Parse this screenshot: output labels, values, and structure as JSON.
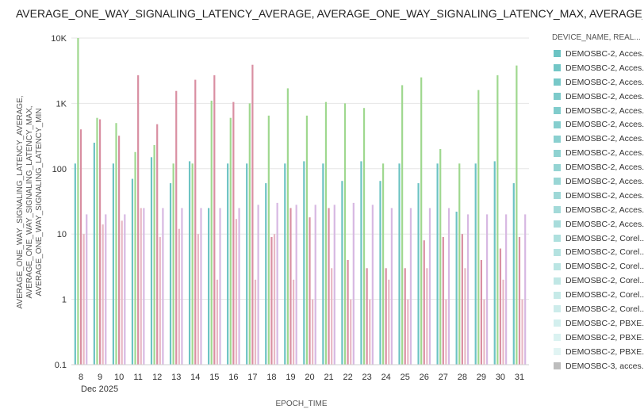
{
  "chart_data": {
    "type": "bar",
    "title": "AVERAGE_ONE_WAY_SIGNALING_LATENCY_AVERAGE, AVERAGE_ONE_WAY_SIGNALING_LATENCY_MAX, AVERAGE_ONE_WAY_SI",
    "xlabel": "EPOCH_TIME",
    "ylabel_lines": [
      "AVERAGE_ONE_WAY_SIGNALING_LATENCY_AVERAGE,",
      "AVERAGE_ONE_WAY_SIGNALING_LATENCY_MAX,",
      "AVERAGE_ONE_WAY_SIGNALING_LATENCY_MIN"
    ],
    "y_scale": "log",
    "ylim": [
      0.1,
      10000
    ],
    "y_ticks": [
      "0.1",
      "1",
      "10",
      "100",
      "1K",
      "10K"
    ],
    "y_tick_values": [
      0.1,
      1,
      10,
      100,
      1000,
      10000
    ],
    "grid": true,
    "x_sublabel": "Dec 2025",
    "categories": [
      "8",
      "9",
      "10",
      "11",
      "12",
      "13",
      "14",
      "15",
      "16",
      "17",
      "18",
      "19",
      "20",
      "21",
      "22",
      "23",
      "24",
      "25",
      "26",
      "27",
      "28",
      "29",
      "30",
      "31"
    ],
    "series": [
      {
        "metric": "average",
        "color": "#6cc3c3",
        "values": [
          120,
          250,
          120,
          70,
          150,
          60,
          130,
          25,
          120,
          120,
          60,
          120,
          130,
          120,
          65,
          130,
          65,
          120,
          60,
          120,
          22,
          120,
          130,
          60
        ]
      },
      {
        "metric": "max",
        "color": "#9fd88f",
        "values": [
          10000,
          600,
          500,
          180,
          230,
          120,
          120,
          1100,
          600,
          1000,
          650,
          1700,
          650,
          1050,
          1000,
          850,
          120,
          1900,
          2500,
          200,
          120,
          1600,
          2700,
          3800
        ]
      },
      {
        "metric": "min-1",
        "color": "#d98fa2",
        "values": [
          400,
          570,
          320,
          2700,
          480,
          1550,
          2300,
          2700,
          1050,
          3900,
          9,
          25,
          18,
          25,
          4,
          3,
          3,
          3,
          8,
          9,
          10,
          4,
          6,
          9
        ]
      },
      {
        "metric": "min-2",
        "color": "#e8b8c4",
        "values": [
          10,
          14,
          16,
          25,
          9,
          12,
          10,
          2,
          17,
          2,
          10,
          2,
          1,
          3,
          1,
          1,
          2,
          1,
          3,
          1,
          3,
          1,
          2,
          1
        ]
      },
      {
        "metric": "min-3",
        "color": "#d7b8e2",
        "values": [
          20,
          20,
          20,
          25,
          25,
          25,
          25,
          25,
          25,
          28,
          30,
          28,
          28,
          28,
          30,
          28,
          25,
          25,
          25,
          25,
          20,
          20,
          20,
          20
        ]
      }
    ],
    "legend": {
      "title": "DEVICE_NAME, REAL...",
      "placement": "right",
      "items": [
        {
          "label": "DEMOSBC-2, Acces...",
          "color": "#6cc3c3"
        },
        {
          "label": "DEMOSBC-2, Acces...",
          "color": "#72c6c6"
        },
        {
          "label": "DEMOSBC-2, Acces...",
          "color": "#77c8c8"
        },
        {
          "label": "DEMOSBC-2, Acces...",
          "color": "#7ccaca"
        },
        {
          "label": "DEMOSBC-2, Acces...",
          "color": "#80cccc"
        },
        {
          "label": "DEMOSBC-2, Acces...",
          "color": "#85cece"
        },
        {
          "label": "DEMOSBC-2, Acces...",
          "color": "#8ad0d0"
        },
        {
          "label": "DEMOSBC-2, Acces...",
          "color": "#8fd2d1"
        },
        {
          "label": "DEMOSBC-2, Acces...",
          "color": "#94d4d3"
        },
        {
          "label": "DEMOSBC-2, Acces...",
          "color": "#99d6d5"
        },
        {
          "label": "DEMOSBC-2, Acces...",
          "color": "#9ed8d7"
        },
        {
          "label": "DEMOSBC-2, Acces...",
          "color": "#a3dad9"
        },
        {
          "label": "DEMOSBC-2, Acces...",
          "color": "#a8dcdb"
        },
        {
          "label": "DEMOSBC-2, Corel...",
          "color": "#aee0de"
        },
        {
          "label": "DEMOSBC-2, Corel...",
          "color": "#b4e2e0"
        },
        {
          "label": "DEMOSBC-2, Corel...",
          "color": "#bae5e3"
        },
        {
          "label": "DEMOSBC-2, Corel...",
          "color": "#c0e7e5"
        },
        {
          "label": "DEMOSBC-2, Corel...",
          "color": "#c6eae8"
        },
        {
          "label": "DEMOSBC-2, Corel...",
          "color": "#cdeceb"
        },
        {
          "label": "DEMOSBC-2, PBXE...",
          "color": "#d3efee"
        },
        {
          "label": "DEMOSBC-2, PBXE...",
          "color": "#daf2f1"
        },
        {
          "label": "DEMOSBC-2, PBXE...",
          "color": "#e1f4f3"
        },
        {
          "label": "DEMOSBC-3, acces...",
          "color": "#bdbdbd"
        }
      ]
    }
  }
}
